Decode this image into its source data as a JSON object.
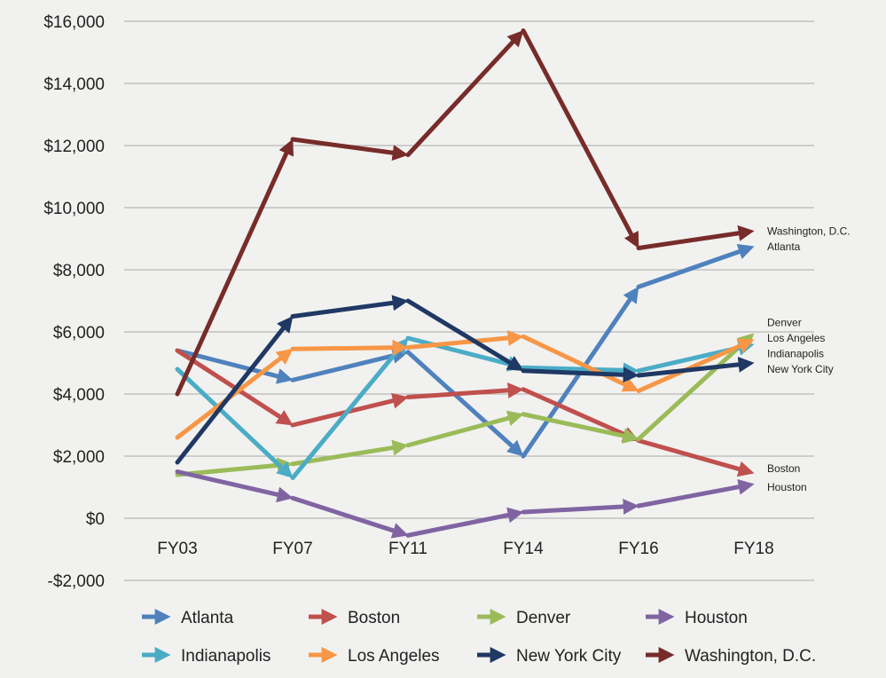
{
  "chart_data": {
    "type": "line",
    "categories": [
      "FY03",
      "FY07",
      "FY11",
      "FY14",
      "FY16",
      "FY18"
    ],
    "ylim": [
      -2000,
      16000
    ],
    "yticks": [
      -2000,
      0,
      2000,
      4000,
      6000,
      8000,
      10000,
      12000,
      14000,
      16000
    ],
    "ytick_labels": [
      "-$2,000",
      "$0",
      "$2,000",
      "$4,000",
      "$6,000",
      "$8,000",
      "$10,000",
      "$12,000",
      "$14,000",
      "$16,000"
    ],
    "grid": "horizontal",
    "legend_position": "bottom",
    "series": [
      {
        "name": "Atlanta",
        "color": "#4f81bd",
        "values": [
          5400,
          4450,
          5350,
          2000,
          7450,
          8750
        ]
      },
      {
        "name": "Boston",
        "color": "#c0504d",
        "values": [
          5400,
          3000,
          3900,
          4150,
          2500,
          1450
        ]
      },
      {
        "name": "Denver",
        "color": "#9bbb59",
        "values": [
          1400,
          1750,
          2350,
          3350,
          2550,
          5950
        ]
      },
      {
        "name": "Houston",
        "color": "#8064a2",
        "values": [
          1500,
          650,
          -550,
          200,
          400,
          1100
        ]
      },
      {
        "name": "Indianapolis",
        "color": "#4bacc6",
        "values": [
          4800,
          1300,
          5800,
          4850,
          4750,
          5600
        ]
      },
      {
        "name": "Los Angeles",
        "color": "#f79646",
        "values": [
          2600,
          5450,
          5500,
          5850,
          4100,
          5750
        ]
      },
      {
        "name": "New York City",
        "color": "#1f3864",
        "values": [
          1800,
          6500,
          7000,
          4750,
          4600,
          5000
        ]
      },
      {
        "name": "Washington, D.C.",
        "color": "#772c2a",
        "values": [
          4000,
          12200,
          11700,
          15700,
          8700,
          9250
        ]
      }
    ],
    "end_labels": [
      {
        "text": "Washington, D.C.",
        "value": 9250
      },
      {
        "text": "Atlanta",
        "value": 8750
      },
      {
        "text": "Denver",
        "value": 6300
      },
      {
        "text": "Los Angeles",
        "value": 5800
      },
      {
        "text": "Indianapolis",
        "value": 5300
      },
      {
        "text": "New York City",
        "value": 4800
      },
      {
        "text": "Boston",
        "value": 1600
      },
      {
        "text": "Houston",
        "value": 1000
      }
    ]
  }
}
